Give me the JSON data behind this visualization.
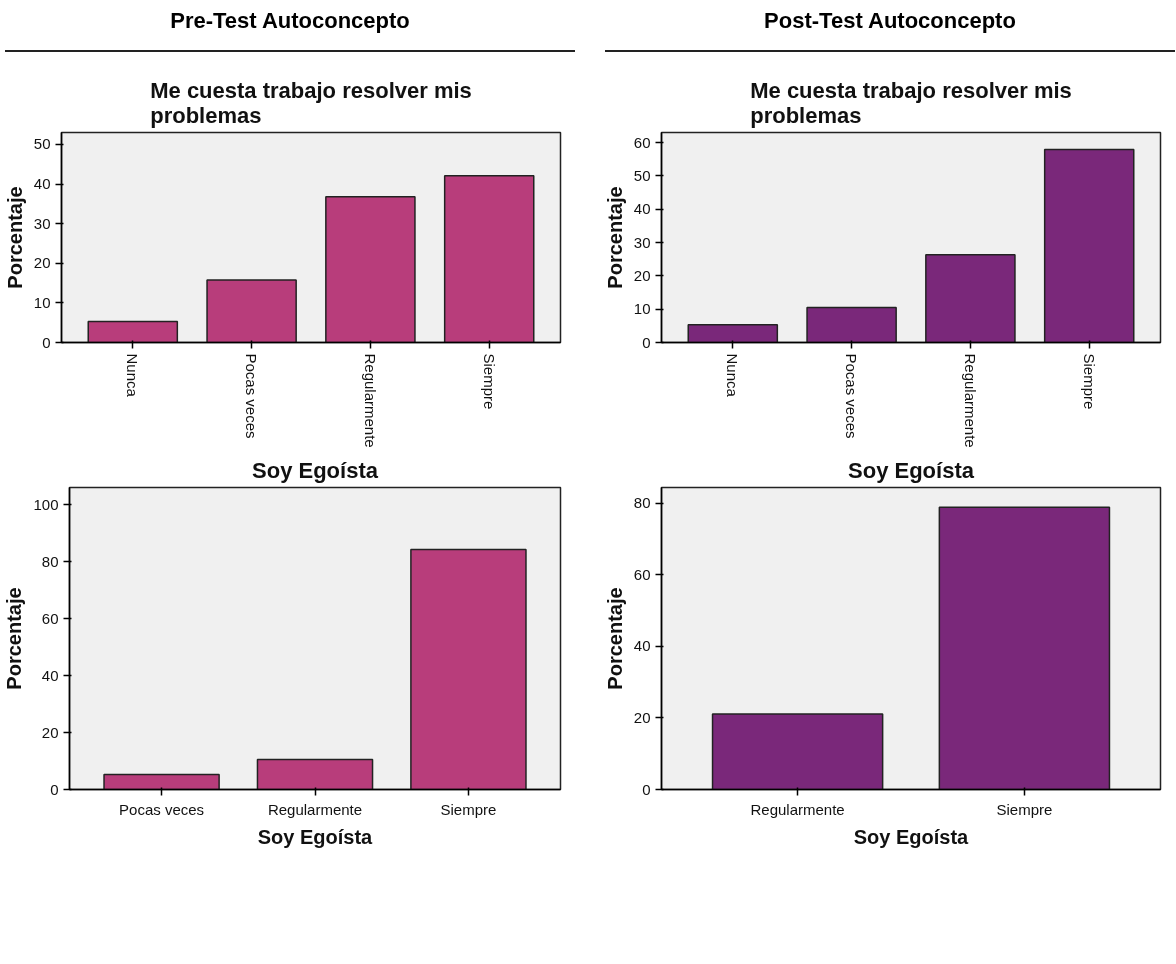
{
  "chart_data": [
    {
      "type": "bar",
      "title": "Me cuesta trabajo resolver mis problemas",
      "ylabel": "Porcentaje",
      "annotations": [
        "Pre-Test Autoconcepto"
      ],
      "categories": [
        "Nunca",
        "Pocas veces",
        "Regularmente",
        "Siempre"
      ],
      "values": [
        5.3,
        15.8,
        36.8,
        42.1
      ],
      "color": "#b83d7b",
      "ylim": [
        0,
        53
      ],
      "yticks": [
        0,
        10,
        20,
        30,
        40,
        50
      ]
    },
    {
      "type": "bar",
      "title": "Me cuesta trabajo resolver mis problemas",
      "ylabel": "Porcentaje",
      "annotations": [
        "Post-Test Autoconcepto"
      ],
      "categories": [
        "Nunca",
        "Pocas veces",
        "Regularmente",
        "Siempre"
      ],
      "values": [
        5.3,
        10.5,
        26.3,
        57.9
      ],
      "color": "#7a287a",
      "ylim": [
        0,
        63
      ],
      "yticks": [
        0,
        10,
        20,
        30,
        40,
        50,
        60
      ]
    },
    {
      "type": "bar",
      "title": "Soy Egoísta",
      "xlabel": "Soy Egoísta",
      "ylabel": "Porcentaje",
      "categories": [
        "Pocas veces",
        "Regularmente",
        "Siempre"
      ],
      "values": [
        5.3,
        10.5,
        84.2
      ],
      "color": "#b83d7b",
      "ylim": [
        0,
        106
      ],
      "yticks": [
        0,
        20,
        40,
        60,
        80,
        100
      ]
    },
    {
      "type": "bar",
      "title": "Soy Egoísta",
      "xlabel": "Soy Egoísta",
      "ylabel": "Porcentaje",
      "categories": [
        "Regularmente",
        "Siempre"
      ],
      "values": [
        21.1,
        78.9
      ],
      "color": "#7a287a",
      "ylim": [
        0,
        84.4
      ],
      "yticks": [
        0,
        20,
        40,
        60,
        80
      ]
    }
  ]
}
